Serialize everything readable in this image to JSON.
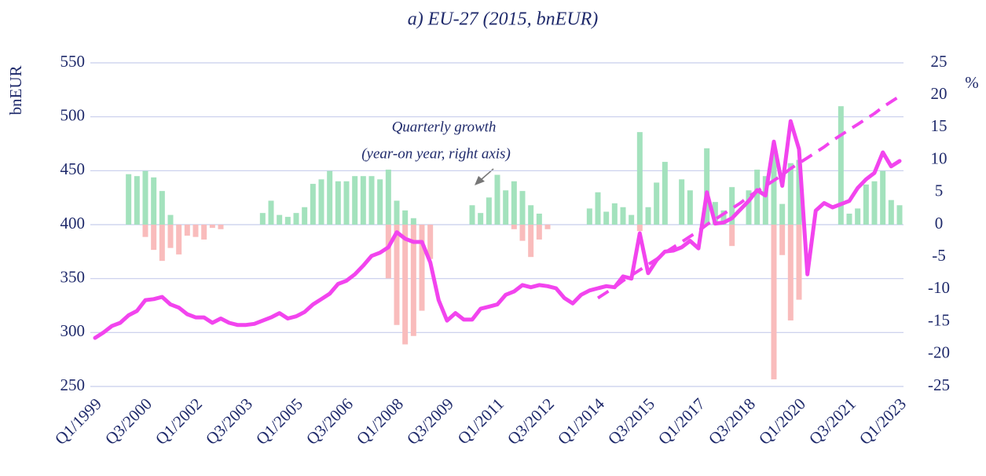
{
  "chart_data": {
    "type": "bar-line",
    "title": "a) EU-27 (2015, bnEUR)",
    "ylabel": "bnEUR",
    "y2label": "%",
    "annotation": [
      "Quarterly growth",
      "(year-on year, right axis)"
    ],
    "categories": [
      "Q1/1999",
      null,
      null,
      null,
      null,
      null,
      "Q3/2000",
      null,
      null,
      null,
      null,
      null,
      "Q1/2002",
      null,
      null,
      null,
      null,
      null,
      "Q3/2003",
      null,
      null,
      null,
      null,
      null,
      "Q1/2005",
      null,
      null,
      null,
      null,
      null,
      "Q3/2006",
      null,
      null,
      null,
      null,
      null,
      "Q1/2008",
      null,
      null,
      null,
      null,
      null,
      "Q3/2009",
      null,
      null,
      null,
      null,
      null,
      "Q1/2011",
      null,
      null,
      null,
      null,
      null,
      "Q3/2012",
      null,
      null,
      null,
      null,
      null,
      "Q1/2014",
      null,
      null,
      null,
      null,
      null,
      "Q3/2015",
      null,
      null,
      null,
      null,
      null,
      "Q1/2017",
      null,
      null,
      null,
      null,
      null,
      "Q3/2018",
      null,
      null,
      null,
      null,
      null,
      "Q1/2020",
      null,
      null,
      null,
      null,
      null,
      "Q3/2021",
      null,
      null,
      null,
      null,
      null,
      "Q1/2023"
    ],
    "ylim": [
      250,
      550
    ],
    "yticks": [
      250,
      300,
      350,
      400,
      450,
      500,
      550
    ],
    "y2lim": [
      -25,
      25
    ],
    "y2ticks": [
      -25,
      -20,
      -15,
      -10,
      -5,
      0,
      5,
      10,
      15,
      20,
      25
    ],
    "grid": true,
    "series": [
      {
        "kind": "bar",
        "axis": "y2",
        "color": "#a3e2bd",
        "values": [
          null,
          null,
          null,
          null,
          7.8,
          7.5,
          8.3,
          7.3,
          5.2,
          1.5,
          null,
          null,
          null,
          null,
          null,
          null,
          null,
          null,
          null,
          null,
          1.8,
          3.7,
          1.5,
          1.2,
          1.8,
          2.7,
          6.3,
          7.0,
          8.3,
          6.7,
          6.7,
          7.5,
          7.5,
          7.5,
          7.0,
          8.5,
          3.7,
          2.2,
          1.0,
          null,
          null,
          null,
          null,
          null,
          null,
          3.0,
          1.8,
          4.2,
          7.7,
          5.3,
          6.7,
          5.2,
          3.0,
          1.7,
          null,
          null,
          null,
          null,
          null,
          2.5,
          5.0,
          2.0,
          3.3,
          2.7,
          1.5,
          14.3,
          2.7,
          6.5,
          9.7,
          null,
          7.0,
          5.3,
          null,
          11.8,
          3.5,
          2.2,
          5.8,
          null,
          5.3,
          8.5,
          7.5,
          12.2,
          3.2,
          9.5,
          10.0,
          null,
          null,
          null,
          null,
          18.3,
          1.7,
          2.5,
          6.2,
          6.7,
          8.3,
          3.8,
          3.0
        ]
      },
      {
        "kind": "bar",
        "axis": "y2",
        "color": "#f9bcbc",
        "values": [
          null,
          null,
          null,
          null,
          null,
          null,
          -1.9,
          -3.9,
          -5.6,
          -3.6,
          -4.6,
          -1.7,
          -1.9,
          -2.3,
          -0.5,
          -0.7,
          null,
          null,
          null,
          null,
          null,
          null,
          null,
          null,
          null,
          null,
          null,
          null,
          null,
          null,
          null,
          null,
          null,
          null,
          null,
          -8.3,
          -15.5,
          -18.5,
          -17.2,
          -13.3,
          -5.3,
          null,
          null,
          null,
          null,
          null,
          null,
          null,
          null,
          null,
          -0.7,
          -2.5,
          -5.0,
          -2.3,
          -0.7,
          null,
          null,
          null,
          null,
          null,
          null,
          null,
          null,
          null,
          null,
          -1.0,
          null,
          null,
          null,
          null,
          null,
          null,
          null,
          null,
          null,
          null,
          -3.3,
          null,
          null,
          null,
          null,
          -23.9,
          -4.7,
          -14.8,
          -11.6,
          null,
          null,
          null,
          null,
          null,
          null,
          null,
          null,
          null,
          null,
          null,
          null
        ]
      },
      {
        "kind": "line",
        "color": "#f244ee",
        "values": [
          295,
          300,
          306,
          309,
          316,
          320,
          330,
          331,
          333,
          326,
          323,
          317,
          314,
          314,
          309,
          313,
          309,
          307,
          307,
          308,
          311,
          314,
          318,
          313,
          315,
          319,
          326,
          331,
          336,
          345,
          348,
          354,
          362,
          371,
          374,
          379,
          393,
          387,
          384,
          384,
          365,
          330,
          311,
          318,
          312,
          312,
          322,
          324,
          326,
          335,
          338,
          344,
          342,
          344,
          343,
          341,
          332,
          327,
          335,
          339,
          341,
          343,
          342,
          352,
          350,
          392,
          355,
          367,
          375,
          376,
          379,
          385,
          378,
          430,
          401,
          402,
          406,
          414,
          422,
          432,
          427,
          477,
          436,
          496,
          470,
          354,
          413,
          420,
          416,
          419,
          422,
          434,
          442,
          448,
          467,
          454,
          459
        ]
      },
      {
        "kind": "dashed-line",
        "color": "#f244ee",
        "values": [
          null,
          null,
          null,
          null,
          null,
          null,
          null,
          null,
          null,
          null,
          null,
          null,
          null,
          null,
          null,
          null,
          null,
          null,
          null,
          null,
          null,
          null,
          null,
          null,
          null,
          null,
          null,
          null,
          null,
          null,
          null,
          null,
          null,
          null,
          null,
          null,
          null,
          null,
          null,
          null,
          null,
          null,
          null,
          null,
          null,
          null,
          null,
          null,
          null,
          null,
          null,
          null,
          null,
          null,
          null,
          null,
          null,
          null,
          null,
          null,
          332,
          337,
          342,
          348,
          353,
          358,
          363,
          368,
          374,
          379,
          384,
          389,
          394,
          400,
          405,
          410,
          415,
          420,
          426,
          431,
          436,
          441,
          446,
          452,
          457,
          462,
          467,
          472,
          478,
          483,
          488,
          493,
          498,
          503,
          509,
          514,
          519
        ]
      }
    ]
  }
}
